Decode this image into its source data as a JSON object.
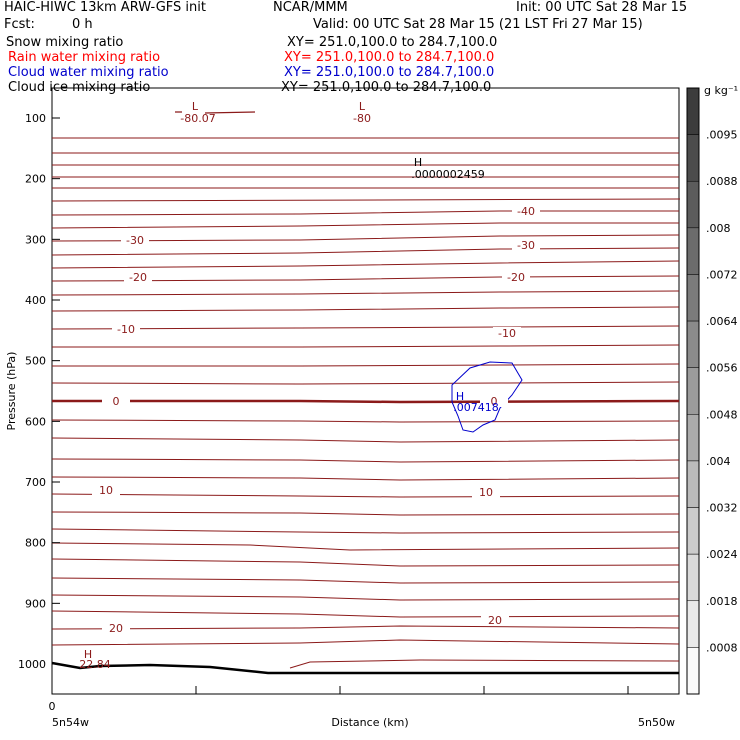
{
  "header": {
    "title": "HAIC-HIWC 13km ARW-GFS init",
    "org": "NCAR/MMM",
    "init": "Init: 00 UTC Sat 28 Mar 15",
    "fcst_label": "Fcst:",
    "fcst_value": "0 h",
    "valid": "Valid: 00 UTC Sat 28 Mar 15 (21 LST Fri 27 Mar 15)",
    "fields": [
      {
        "name": "Snow mixing ratio",
        "xy": "XY= 251.0,100.0 to 284.7,100.0",
        "color": "#000000"
      },
      {
        "name": "Rain water mixing ratio",
        "xy": "XY= 251.0,100.0 to 284.7,100.0",
        "color": "#ff0000"
      },
      {
        "name": "Cloud water mixing ratio",
        "xy": "XY= 251.0,100.0 to 284.7,100.0",
        "color": "#0000cc"
      },
      {
        "name": "Cloud ice mixing ratio",
        "xy": "XY= 251.0,100.0 to 284.7,100.0",
        "color": "#000000"
      }
    ]
  },
  "chart_data": {
    "type": "line",
    "xlabel": "Distance (km)",
    "ylabel": "Pressure (hPa)",
    "x_ticks": [
      "0",
      "",
      "",
      "",
      ""
    ],
    "x_start_label": "5n54w",
    "x_end_label": "5n50w",
    "y_ticks": [
      100,
      200,
      300,
      400,
      500,
      600,
      700,
      800,
      900,
      1000
    ],
    "ylim": [
      1050,
      75
    ],
    "temperature_labels": [
      "-40",
      "-30",
      "-30",
      "-20",
      "-20",
      "-10",
      "-10",
      "0",
      "0",
      "10",
      "10",
      "20",
      "20"
    ],
    "extrema": [
      {
        "kind": "L",
        "value": "-80.07"
      },
      {
        "kind": "L",
        "value": "-80"
      },
      {
        "kind": "H",
        "value": ".0000002459"
      },
      {
        "kind": "H",
        "value": ".007418"
      },
      {
        "kind": "H",
        "value": "22.84"
      }
    ],
    "colorbar": {
      "unit": "g kg⁻¹",
      "levels": [
        ".0095",
        ".0088",
        ".008",
        ".0072",
        ".0064",
        ".0056",
        ".0048",
        ".004",
        ".0032",
        ".0024",
        ".0018",
        ".0008"
      ]
    }
  }
}
